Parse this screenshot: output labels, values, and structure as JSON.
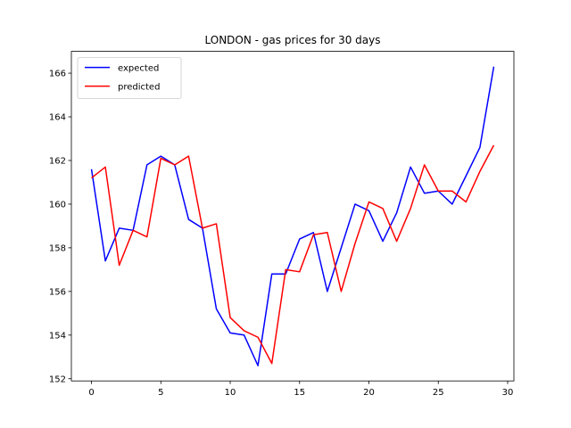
{
  "chart_data": {
    "type": "line",
    "title": "LONDON - gas prices for 30 days",
    "xlabel": "",
    "ylabel": "",
    "xlim": [
      -1.45,
      30.45
    ],
    "ylim": [
      151.9,
      167.0
    ],
    "x_ticks": [
      0,
      5,
      10,
      15,
      20,
      25,
      30
    ],
    "y_ticks": [
      152,
      154,
      156,
      158,
      160,
      162,
      164,
      166
    ],
    "grid": false,
    "legend_position": "top-left",
    "x": [
      0,
      1,
      2,
      3,
      4,
      5,
      6,
      7,
      8,
      9,
      10,
      11,
      12,
      13,
      14,
      15,
      16,
      17,
      18,
      19,
      20,
      21,
      22,
      23,
      24,
      25,
      26,
      27,
      28,
      29
    ],
    "series": [
      {
        "name": "expected",
        "color": "#0000ff",
        "values": [
          161.6,
          157.4,
          158.9,
          158.8,
          161.8,
          162.2,
          161.8,
          159.3,
          158.9,
          155.2,
          154.1,
          154.0,
          152.6,
          156.8,
          156.8,
          158.4,
          158.7,
          156.0,
          158.0,
          160.0,
          159.7,
          158.3,
          159.6,
          161.7,
          160.5,
          160.6,
          160.0,
          161.3,
          162.6,
          166.3
        ]
      },
      {
        "name": "predicted",
        "color": "#ff0000",
        "values": [
          161.2,
          161.7,
          157.2,
          158.8,
          158.5,
          162.1,
          161.8,
          162.2,
          158.9,
          159.1,
          154.8,
          154.2,
          153.9,
          152.7,
          157.0,
          156.9,
          158.6,
          158.7,
          156.0,
          158.2,
          160.1,
          159.8,
          158.3,
          159.8,
          161.8,
          160.6,
          160.6,
          160.1,
          161.5,
          162.7
        ]
      }
    ]
  }
}
